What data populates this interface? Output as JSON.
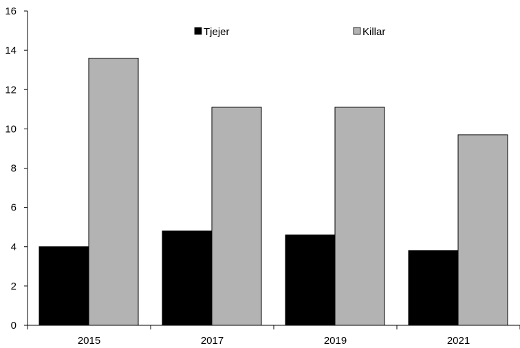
{
  "chart_data": {
    "type": "bar",
    "categories": [
      "2015",
      "2017",
      "2019",
      "2021"
    ],
    "series": [
      {
        "name": "Tjejer",
        "values": [
          4.0,
          4.8,
          4.6,
          3.8
        ],
        "color": "#000000"
      },
      {
        "name": "Killar",
        "values": [
          13.6,
          11.1,
          11.1,
          9.7
        ],
        "color": "#b3b3b3"
      }
    ],
    "ylim": [
      0,
      16
    ],
    "yticks": [
      "0",
      "2",
      "4",
      "6",
      "8",
      "10",
      "12",
      "14",
      "16"
    ],
    "title": "",
    "xlabel": "",
    "ylabel": "",
    "grid": false,
    "legend_position": "top-center"
  }
}
